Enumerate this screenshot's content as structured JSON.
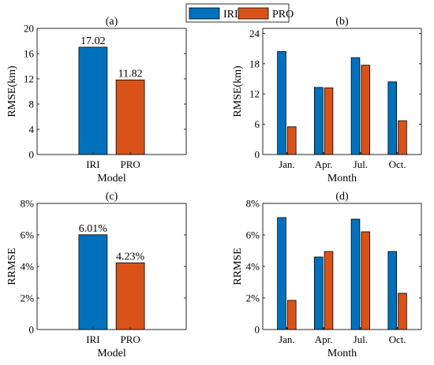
{
  "legend": [
    {
      "name": "IRI",
      "color": "#0072BD"
    },
    {
      "name": "PRO",
      "color": "#D95319"
    }
  ],
  "chart_data": [
    {
      "type": "bar",
      "title": "(a)",
      "xlabel": "Model",
      "ylabel": "RMSE(km)",
      "categories": [
        "IRI",
        "PRO"
      ],
      "values": [
        17.02,
        11.82
      ],
      "colors": [
        "#0072BD",
        "#D95319"
      ],
      "data_labels": [
        "17.02",
        "11.82"
      ],
      "ylim": [
        0,
        20
      ],
      "yticks": [
        0,
        4,
        8,
        12,
        16,
        20
      ],
      "ytick_labels": [
        "0",
        "4",
        "8",
        "12",
        "16",
        "20"
      ]
    },
    {
      "type": "bar",
      "title": "(b)",
      "xlabel": "Month",
      "ylabel": "RMSE(km)",
      "categories": [
        "Jan.",
        "Apr.",
        "Jul.",
        "Oct."
      ],
      "series": [
        {
          "name": "IRI",
          "color": "#0072BD",
          "values": [
            20.4,
            13.3,
            19.2,
            14.4
          ]
        },
        {
          "name": "PRO",
          "color": "#D95319",
          "values": [
            5.5,
            13.2,
            17.7,
            6.7
          ]
        }
      ],
      "ylim": [
        0,
        25
      ],
      "yticks": [
        0,
        6,
        12,
        18,
        24
      ],
      "ytick_labels": [
        "0",
        "6",
        "12",
        "18",
        "24"
      ]
    },
    {
      "type": "bar",
      "title": "(c)",
      "xlabel": "Model",
      "ylabel": "RRMSE",
      "categories": [
        "IRI",
        "PRO"
      ],
      "values": [
        6.01,
        4.23
      ],
      "colors": [
        "#0072BD",
        "#D95319"
      ],
      "data_labels": [
        "6.01%",
        "4.23%"
      ],
      "ylim": [
        0,
        8
      ],
      "yticks": [
        0,
        2,
        4,
        6,
        8
      ],
      "ytick_labels": [
        "0",
        "2%",
        "4%",
        "6%",
        "8%"
      ]
    },
    {
      "type": "bar",
      "title": "(d)",
      "xlabel": "Month",
      "ylabel": "RRMSE",
      "categories": [
        "Jan.",
        "Apr.",
        "Jul.",
        "Oct."
      ],
      "series": [
        {
          "name": "IRI",
          "color": "#0072BD",
          "values": [
            7.1,
            4.6,
            7.0,
            4.95
          ]
        },
        {
          "name": "PRO",
          "color": "#D95319",
          "values": [
            1.85,
            4.95,
            6.2,
            2.3
          ]
        }
      ],
      "ylim": [
        0,
        8
      ],
      "yticks": [
        0,
        2,
        4,
        6,
        8
      ],
      "ytick_labels": [
        "0",
        "2%",
        "4%",
        "6%",
        "8%"
      ]
    }
  ]
}
